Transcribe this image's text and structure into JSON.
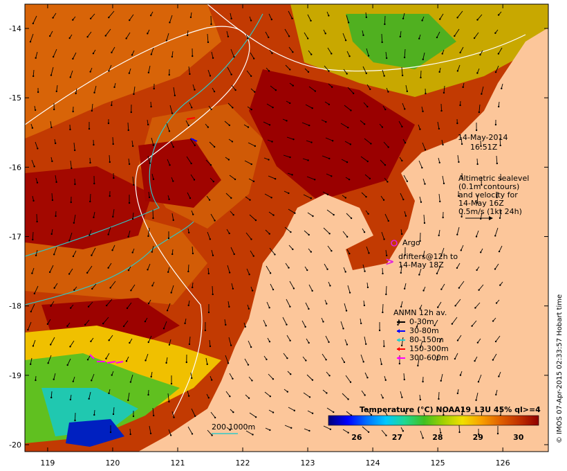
{
  "timestamp": {
    "date": "14-May-2014",
    "time": "16:51Z"
  },
  "altimetry_note": {
    "lines": [
      "Altimetric sealevel",
      "(0.1m contours)",
      "and velocity for",
      "14-May 16Z",
      "0.5m/s (1kt 24h)"
    ]
  },
  "argo": {
    "label": "Argo",
    "color": "#e020e0"
  },
  "drifters": {
    "lines": [
      "drifters@12h to",
      "14-May 18Z"
    ],
    "color": "#e020e0"
  },
  "anmn_legend": {
    "title": "ANMN 12h av.",
    "items": [
      {
        "label": "0-30m",
        "color": "#000000"
      },
      {
        "label": "30-80m",
        "color": "#0000ff"
      },
      {
        "label": "80-150m",
        "color": "#20d0d0"
      },
      {
        "label": "150-300m",
        "color": "#ff0000"
      },
      {
        "label": "300-600m",
        "color": "#ff00ff"
      }
    ]
  },
  "isobath_label": "200 1000m",
  "colorbar": {
    "title": "Temperature (°C) NOAA19_L3U 45% ql>=4",
    "min": 25.3,
    "max": 30.5,
    "ticks": [
      "26",
      "27",
      "28",
      "29",
      "30"
    ],
    "tick_values": [
      26,
      27,
      28,
      29,
      30
    ],
    "colors": [
      "#00007a",
      "#0000ff",
      "#0070ff",
      "#00c8ff",
      "#20d890",
      "#40c020",
      "#a0d000",
      "#f0e000",
      "#f8a000",
      "#e06000",
      "#c03000",
      "#900000"
    ]
  },
  "axes": {
    "x_ticks": [
      "119",
      "120",
      "121",
      "122",
      "123",
      "124",
      "125",
      "126"
    ],
    "x_values": [
      119,
      120,
      121,
      122,
      123,
      124,
      125,
      126
    ],
    "y_ticks": [
      "-14",
      "-15",
      "-16",
      "-17",
      "-18",
      "-19",
      "-20"
    ],
    "y_values": [
      -14,
      -15,
      -16,
      -17,
      -18,
      -19,
      -20
    ],
    "x_range": [
      118.65,
      126.7
    ],
    "y_range": [
      -13.65,
      -20.1
    ]
  },
  "credit": "© IMOS 07-Apr-2015 02:33:57 Hobart time",
  "colors": {
    "land": "#fcc69a",
    "ocean_warm": "#c23a02",
    "ocean_hot": "#9a0000",
    "ocean_mid": "#d86408",
    "altimetry_contour": "#ffffff",
    "isobath_200": "#30c8c8"
  }
}
